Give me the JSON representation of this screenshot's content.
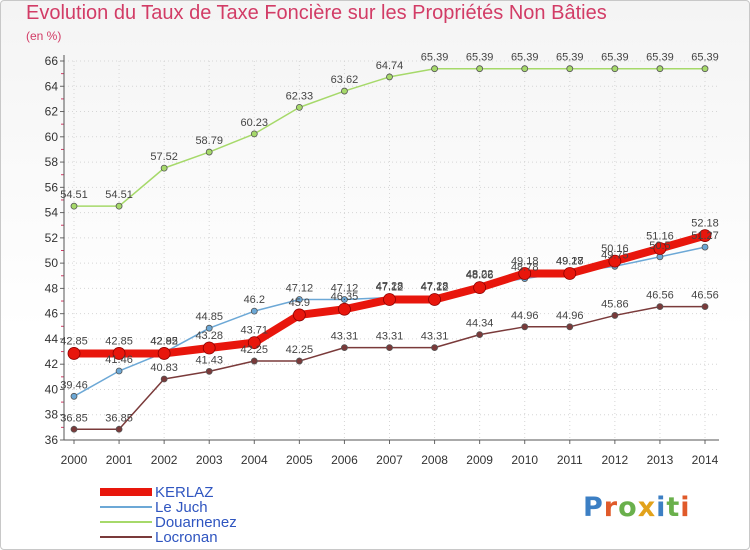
{
  "title": "Evolution du Taux de Taxe Foncière sur les Propriétés Non Bâties",
  "unit": "(en %)",
  "logo": {
    "text": "Proxiti",
    "colors": [
      "#3c7fc4",
      "#e05a2a",
      "#6ab04c",
      "#e2a21b",
      "#3c7fc4",
      "#6ab04c",
      "#e05a2a"
    ]
  },
  "chart_data": {
    "type": "line",
    "x": [
      2000,
      2001,
      2002,
      2003,
      2004,
      2005,
      2006,
      2007,
      2008,
      2009,
      2010,
      2011,
      2012,
      2013,
      2014
    ],
    "ylim": [
      36,
      66
    ],
    "yticks": [
      36,
      38,
      40,
      42,
      44,
      46,
      48,
      50,
      52,
      54,
      56,
      58,
      60,
      62,
      64,
      66
    ],
    "legend_position": "bottom-left",
    "series": [
      {
        "name": "KERLAZ",
        "color": "#e8160c",
        "width": 8,
        "labels": false,
        "values": [
          42.85,
          42.85,
          42.85,
          43.28,
          43.71,
          45.9,
          46.35,
          47.12,
          47.12,
          48.06,
          49.18,
          49.18,
          50.16,
          51.16,
          52.18
        ]
      },
      {
        "name": "Le Juch",
        "color": "#6ca8d6",
        "width": 1.5,
        "labels": true,
        "values": [
          39.46,
          41.46,
          42.92,
          44.85,
          46.2,
          47.12,
          47.12,
          47.28,
          47.28,
          48.22,
          48.78,
          49.27,
          49.75,
          50.5,
          51.27
        ]
      },
      {
        "name": "Douarnenez",
        "color": "#a6d96a",
        "width": 1.5,
        "labels": true,
        "values": [
          54.51,
          54.51,
          57.52,
          58.79,
          60.23,
          62.33,
          63.62,
          64.74,
          65.39,
          65.39,
          65.39,
          65.39,
          65.39,
          65.39,
          65.39
        ]
      },
      {
        "name": "Locronan",
        "color": "#7a3a3a",
        "width": 1.5,
        "labels": true,
        "values": [
          36.85,
          36.85,
          40.83,
          41.43,
          42.25,
          42.25,
          43.31,
          43.31,
          43.31,
          44.34,
          44.96,
          44.96,
          45.86,
          46.56,
          46.56
        ]
      }
    ],
    "kerlaz_value_labels": [
      {
        "index": 0,
        "text": "42.85"
      },
      {
        "index": 1,
        "text": "42.85"
      },
      {
        "index": 2,
        "text": "42.85"
      },
      {
        "index": 3,
        "text": "43.28"
      },
      {
        "index": 4,
        "text": "43.71"
      },
      {
        "index": 5,
        "text": "45.9"
      },
      {
        "index": 6,
        "text": "46.35"
      },
      {
        "index": 7,
        "text": "47.12"
      },
      {
        "index": 8,
        "text": "47.12"
      },
      {
        "index": 9,
        "text": "48.06"
      },
      {
        "index": 10,
        "text": "49.18"
      },
      {
        "index": 11,
        "text": "49.18"
      },
      {
        "index": 12,
        "text": "50.16"
      },
      {
        "index": 13,
        "text": "51.16"
      },
      {
        "index": 14,
        "text": "52.18"
      }
    ]
  }
}
